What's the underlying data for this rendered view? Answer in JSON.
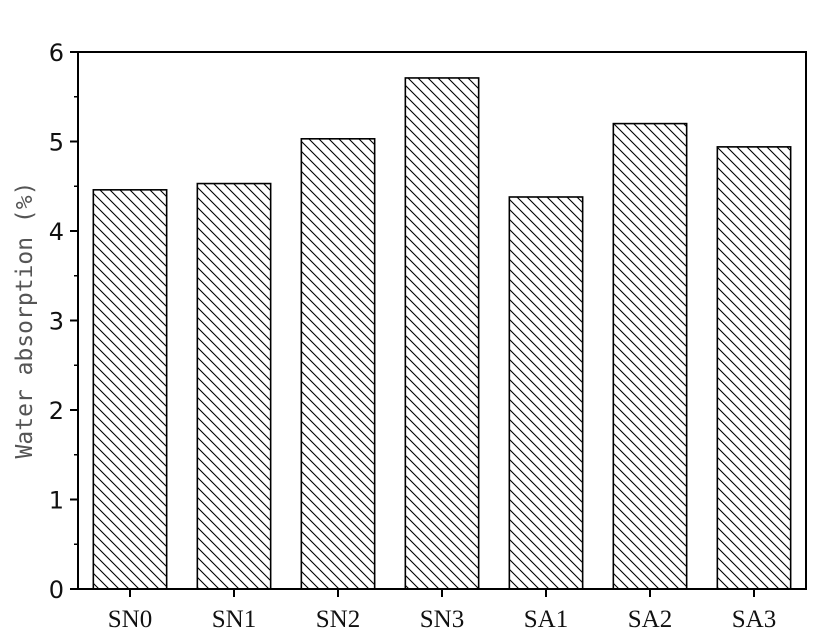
{
  "chart_data": {
    "type": "bar",
    "title": "",
    "xlabel": "",
    "ylabel": "Water absorption (%)",
    "categories": [
      "SN0",
      "SN1",
      "SN2",
      "SN3",
      "SA1",
      "SA2",
      "SA3"
    ],
    "values": [
      4.46,
      4.53,
      5.03,
      5.71,
      4.38,
      5.2,
      4.94
    ],
    "ylim": [
      0,
      6
    ],
    "yticks": [
      "0",
      "1",
      "2",
      "3",
      "4",
      "5",
      "6"
    ],
    "grid": false,
    "legend": "none",
    "bar_fill": "hatched diagonal",
    "colors": {
      "bar_edge": "#000000",
      "hatch": "#000000",
      "axis": "#000000",
      "background": "#ffffff"
    }
  }
}
